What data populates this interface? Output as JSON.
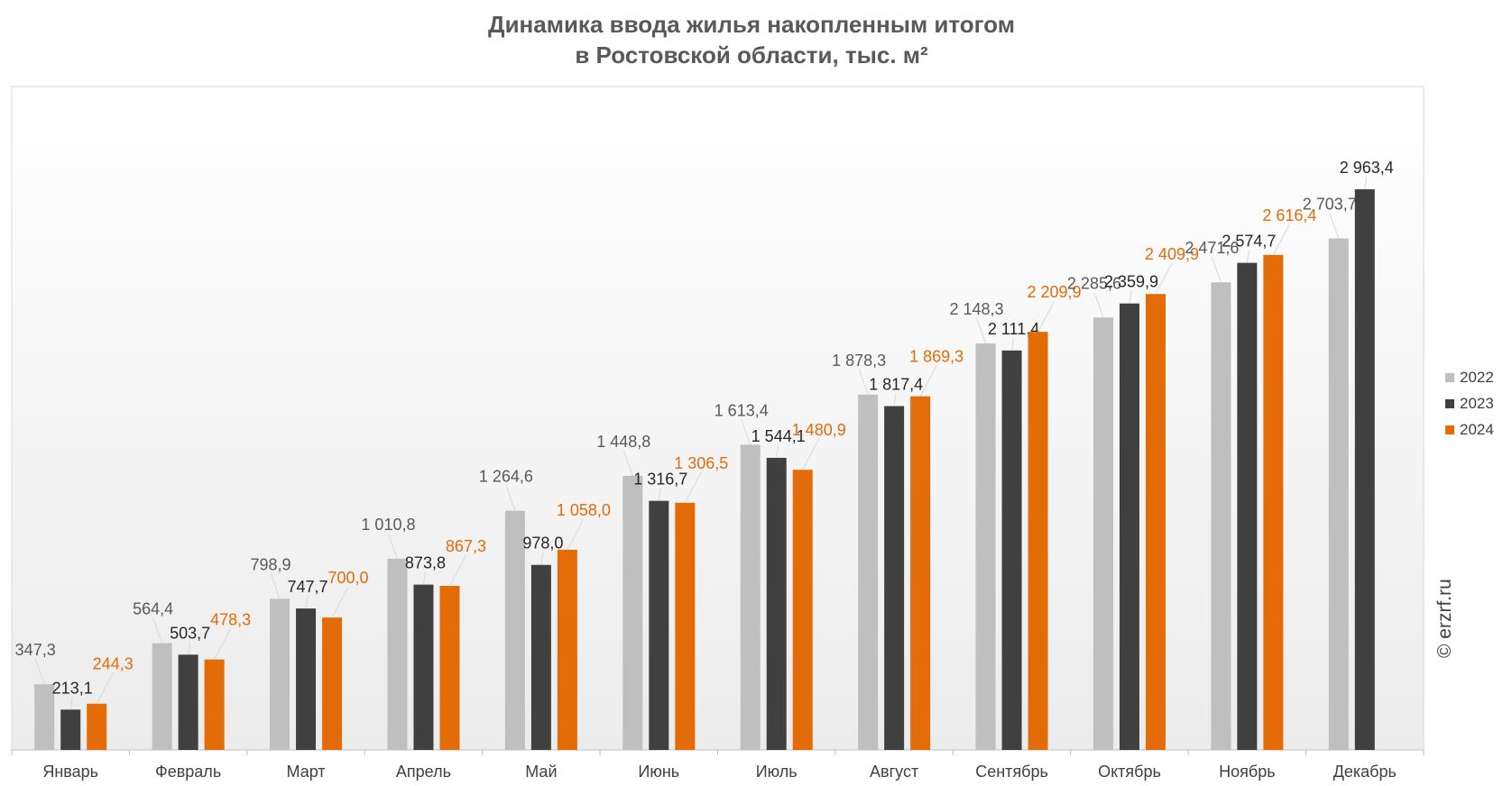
{
  "chart_data": {
    "type": "bar",
    "title_line1": "Динамика ввода жилья накопленным итогом",
    "title_line2": "в Ростовской области, тыс. м²",
    "xlabel": "",
    "ylabel": "",
    "ylim": [
      0,
      3200
    ],
    "grid": false,
    "legend_position": "right",
    "categories": [
      "Январь",
      "Февраль",
      "Март",
      "Апрель",
      "Май",
      "Июнь",
      "Июль",
      "Август",
      "Сентябрь",
      "Октябрь",
      "Ноябрь",
      "Декабрь"
    ],
    "series": [
      {
        "name": "2022",
        "color": "#bfbfbf",
        "label_color": "#595959",
        "values": [
          347.3,
          564.4,
          798.9,
          1010.8,
          1264.6,
          1448.8,
          1613.4,
          1878.3,
          2148.3,
          2285.6,
          2471.6,
          2703.7
        ],
        "labels": [
          "347,3",
          "564,4",
          "798,9",
          "1 010,8",
          "1 264,6",
          "1 448,8",
          "1 613,4",
          "1 878,3",
          "2 148,3",
          "2 285,6",
          "2 471,6",
          "2 703,7"
        ]
      },
      {
        "name": "2023",
        "color": "#404040",
        "label_color": "#262626",
        "values": [
          213.1,
          503.7,
          747.7,
          873.8,
          978.0,
          1316.7,
          1544.1,
          1817.4,
          2111.4,
          2359.9,
          2574.7,
          2963.4
        ],
        "labels": [
          "213,1",
          "503,7",
          "747,7",
          "873,8",
          "978,0",
          "1 316,7",
          "1 544,1",
          "1 817,4",
          "2 111,4",
          "2 359,9",
          "2 574,7",
          "2 963,4"
        ]
      },
      {
        "name": "2024",
        "color": "#e36c09",
        "label_color": "#e36c09",
        "values": [
          244.3,
          478.3,
          700.0,
          867.3,
          1058.0,
          1306.5,
          1480.9,
          1869.3,
          2209.9,
          2409.9,
          2616.4,
          null
        ],
        "labels": [
          "244,3",
          "478,3",
          "700,0",
          "867,3",
          "1 058,0",
          "1 306,5",
          "1 480,9",
          "1 869,3",
          "2 209,9",
          "2 409,9",
          "2 616,4",
          null
        ]
      }
    ]
  },
  "watermark": "© erzrf.ru"
}
